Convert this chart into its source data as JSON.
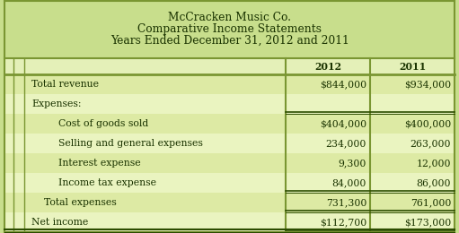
{
  "title_lines": [
    "McCracken Music Co.",
    "Comparative Income Statements",
    "Years Ended December 31, 2012 and 2011"
  ],
  "header_years": [
    "2012",
    "2011"
  ],
  "rows": [
    {
      "label": "Total revenue",
      "indent": 0,
      "val2012": "$844,000",
      "val2011": "$934,000",
      "top_border": false,
      "bottom_border": false,
      "double_top": false
    },
    {
      "label": "Expenses:",
      "indent": 0,
      "val2012": "",
      "val2011": "",
      "top_border": false,
      "bottom_border": false,
      "double_top": false
    },
    {
      "label": "Cost of goods sold",
      "indent": 2,
      "val2012": "$404,000",
      "val2011": "$400,000",
      "top_border": true,
      "bottom_border": false,
      "double_top": true
    },
    {
      "label": "Selling and general expenses",
      "indent": 2,
      "val2012": "234,000",
      "val2011": "263,000",
      "top_border": false,
      "bottom_border": false,
      "double_top": false
    },
    {
      "label": "Interest expense",
      "indent": 2,
      "val2012": "9,300",
      "val2011": "12,000",
      "top_border": false,
      "bottom_border": false,
      "double_top": false
    },
    {
      "label": "Income tax expense",
      "indent": 2,
      "val2012": "84,000",
      "val2011": "86,000",
      "top_border": false,
      "bottom_border": false,
      "double_top": false
    },
    {
      "label": "Total expenses",
      "indent": 1,
      "val2012": "731,300",
      "val2011": "761,000",
      "top_border": true,
      "bottom_border": true,
      "double_top": true
    },
    {
      "label": "Net income",
      "indent": 0,
      "val2012": "$112,700",
      "val2011": "$173,000",
      "top_border": false,
      "bottom_border": true,
      "double_top": false
    }
  ],
  "bg_header": "#c8de8c",
  "bg_row_a": "#ddeaa4",
  "bg_row_b": "#eaf4c0",
  "bg_col_header": "#e4f0b8",
  "border_color": "#7a9632",
  "border_dark": "#2c4c00",
  "text_color": "#1a3300",
  "font_size_title": 8.8,
  "font_size_body": 7.8
}
